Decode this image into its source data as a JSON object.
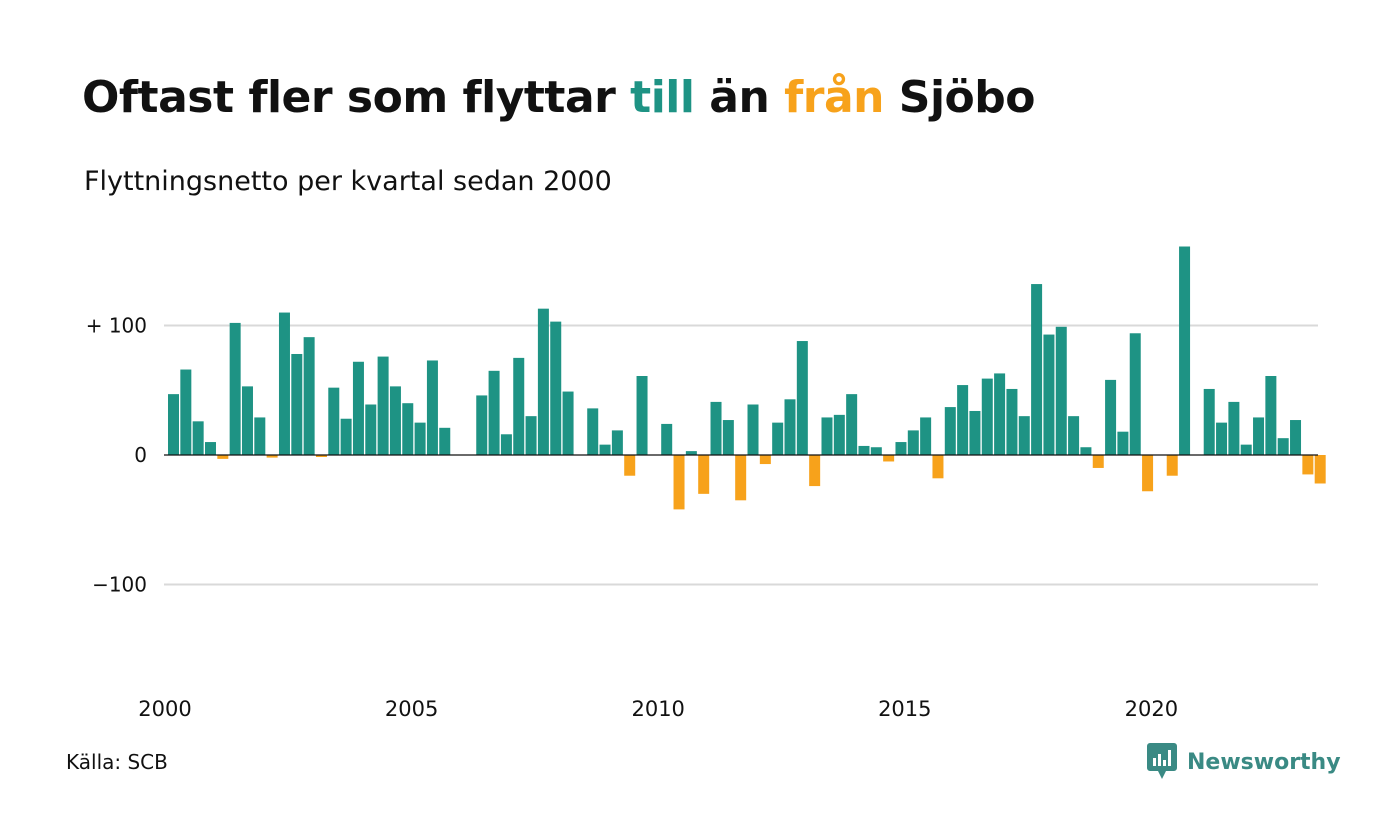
{
  "title": {
    "part1": "Oftast fler som flyttar ",
    "part2": "till",
    "part3": " än ",
    "part4": "från",
    "part5": " Sjöbo"
  },
  "subtitle": "Flyttningsnetto per kvartal sedan 2000",
  "source": "Källa: SCB",
  "brand": {
    "name": "Newsworthy",
    "icon": "newsworthy-logo-icon"
  },
  "colors": {
    "positive": "#1e9384",
    "negative": "#f7a21b",
    "text": "#111111",
    "grid": "#d9d9d9",
    "brand": "#3a8a84"
  },
  "chart_data": {
    "type": "bar",
    "title": "Oftast fler som flyttar till än från Sjöbo",
    "subtitle": "Flyttningsnetto per kvartal sedan 2000",
    "x_start_year": 2000,
    "periods_per_year": 4,
    "values": [
      47,
      66,
      26,
      10,
      -3,
      102,
      53,
      29,
      -2,
      110,
      78,
      91,
      -1,
      52,
      28,
      72,
      39,
      76,
      53,
      40,
      25,
      73,
      21,
      0,
      0,
      46,
      65,
      16,
      75,
      30,
      113,
      103,
      49,
      0,
      36,
      8,
      19,
      -16,
      61,
      0,
      24,
      -42,
      3,
      -30,
      41,
      27,
      -35,
      39,
      -7,
      25,
      43,
      88,
      -24,
      29,
      31,
      47,
      7,
      6,
      -5,
      10,
      19,
      29,
      -18,
      37,
      54,
      34,
      59,
      63,
      51,
      30,
      132,
      93,
      99,
      30,
      6,
      -10,
      58,
      18,
      94,
      -28,
      0,
      -16,
      161,
      0,
      51,
      25,
      41,
      8,
      29,
      61,
      13,
      27,
      -15,
      -22
    ],
    "x_ticks": [
      "2000",
      "2005",
      "2010",
      "2015",
      "2020"
    ],
    "y_ticks": [
      {
        "value": 100,
        "label": "+ 100"
      },
      {
        "value": 0,
        "label": "0"
      },
      {
        "value": -100,
        "label": "−100"
      }
    ],
    "ylim": [
      -165,
      165
    ],
    "grid": true,
    "legend": "none"
  }
}
